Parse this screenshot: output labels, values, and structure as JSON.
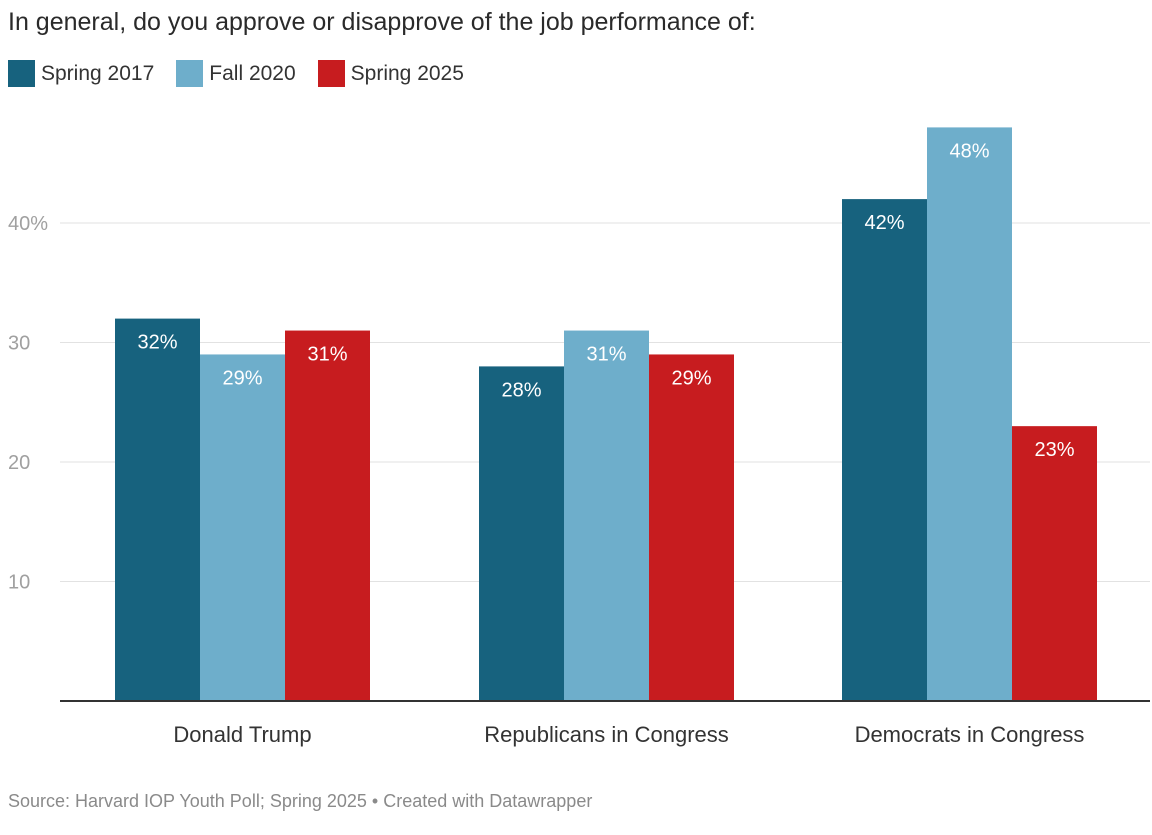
{
  "chart_data": {
    "type": "bar",
    "title": "In general, do you approve or disapprove of the job performance of:",
    "categories": [
      "Donald Trump",
      "Republicans in Congress",
      "Democrats in Congress"
    ],
    "series": [
      {
        "name": "Spring 2017",
        "color": "#17627e",
        "values": [
          32,
          28,
          42
        ],
        "labels": [
          "32%",
          "28%",
          "42%"
        ]
      },
      {
        "name": "Fall 2020",
        "color": "#6eaecb",
        "values": [
          29,
          31,
          48
        ],
        "labels": [
          "29%",
          "31%",
          "48%"
        ]
      },
      {
        "name": "Spring 2025",
        "color": "#c71c1f",
        "values": [
          31,
          29,
          23
        ],
        "labels": [
          "31%",
          "29%",
          "23%"
        ]
      }
    ],
    "y_ticks": [
      {
        "value": 10,
        "label": "10"
      },
      {
        "value": 20,
        "label": "20"
      },
      {
        "value": 30,
        "label": "30"
      },
      {
        "value": 40,
        "label": "40%"
      }
    ],
    "xlabel": "",
    "ylabel": "",
    "ylim": [
      0,
      48
    ],
    "legend_position": "top-left"
  },
  "footer": {
    "source": "Source: Harvard IOP Youth Poll; Spring 2025",
    "separator": "•",
    "credit": "Created with Datawrapper"
  }
}
